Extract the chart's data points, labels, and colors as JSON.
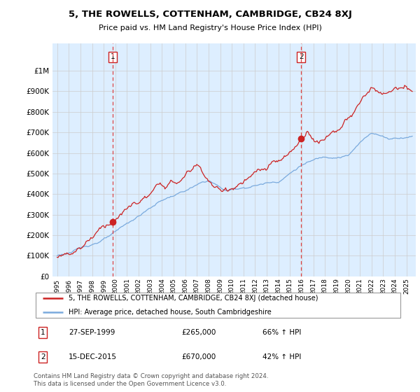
{
  "title": "5, THE ROWELLS, COTTENHAM, CAMBRIDGE, CB24 8XJ",
  "subtitle": "Price paid vs. HM Land Registry's House Price Index (HPI)",
  "legend_line1": "5, THE ROWELLS, COTTENHAM, CAMBRIDGE, CB24 8XJ (detached house)",
  "legend_line2": "HPI: Average price, detached house, South Cambridgeshire",
  "annotation1_date": "27-SEP-1999",
  "annotation1_price": "£265,000",
  "annotation1_hpi": "66% ↑ HPI",
  "annotation2_date": "15-DEC-2015",
  "annotation2_price": "£670,000",
  "annotation2_hpi": "42% ↑ HPI",
  "footer": "Contains HM Land Registry data © Crown copyright and database right 2024.\nThis data is licensed under the Open Government Licence v3.0.",
  "red_color": "#cc2222",
  "blue_color": "#7aaadd",
  "vline_color": "#dd4444",
  "bg_fill_color": "#ddeeff",
  "background_color": "#ffffff",
  "grid_color": "#cccccc",
  "yticks": [
    0,
    100000,
    200000,
    300000,
    400000,
    500000,
    600000,
    700000,
    800000,
    900000,
    1000000
  ],
  "point1_x": 1999.75,
  "point1_y": 265000,
  "point2_x": 2015.96,
  "point2_y": 670000,
  "xmin": 1994.6,
  "xmax": 2025.8,
  "ymin": 0,
  "ymax": 1050000
}
